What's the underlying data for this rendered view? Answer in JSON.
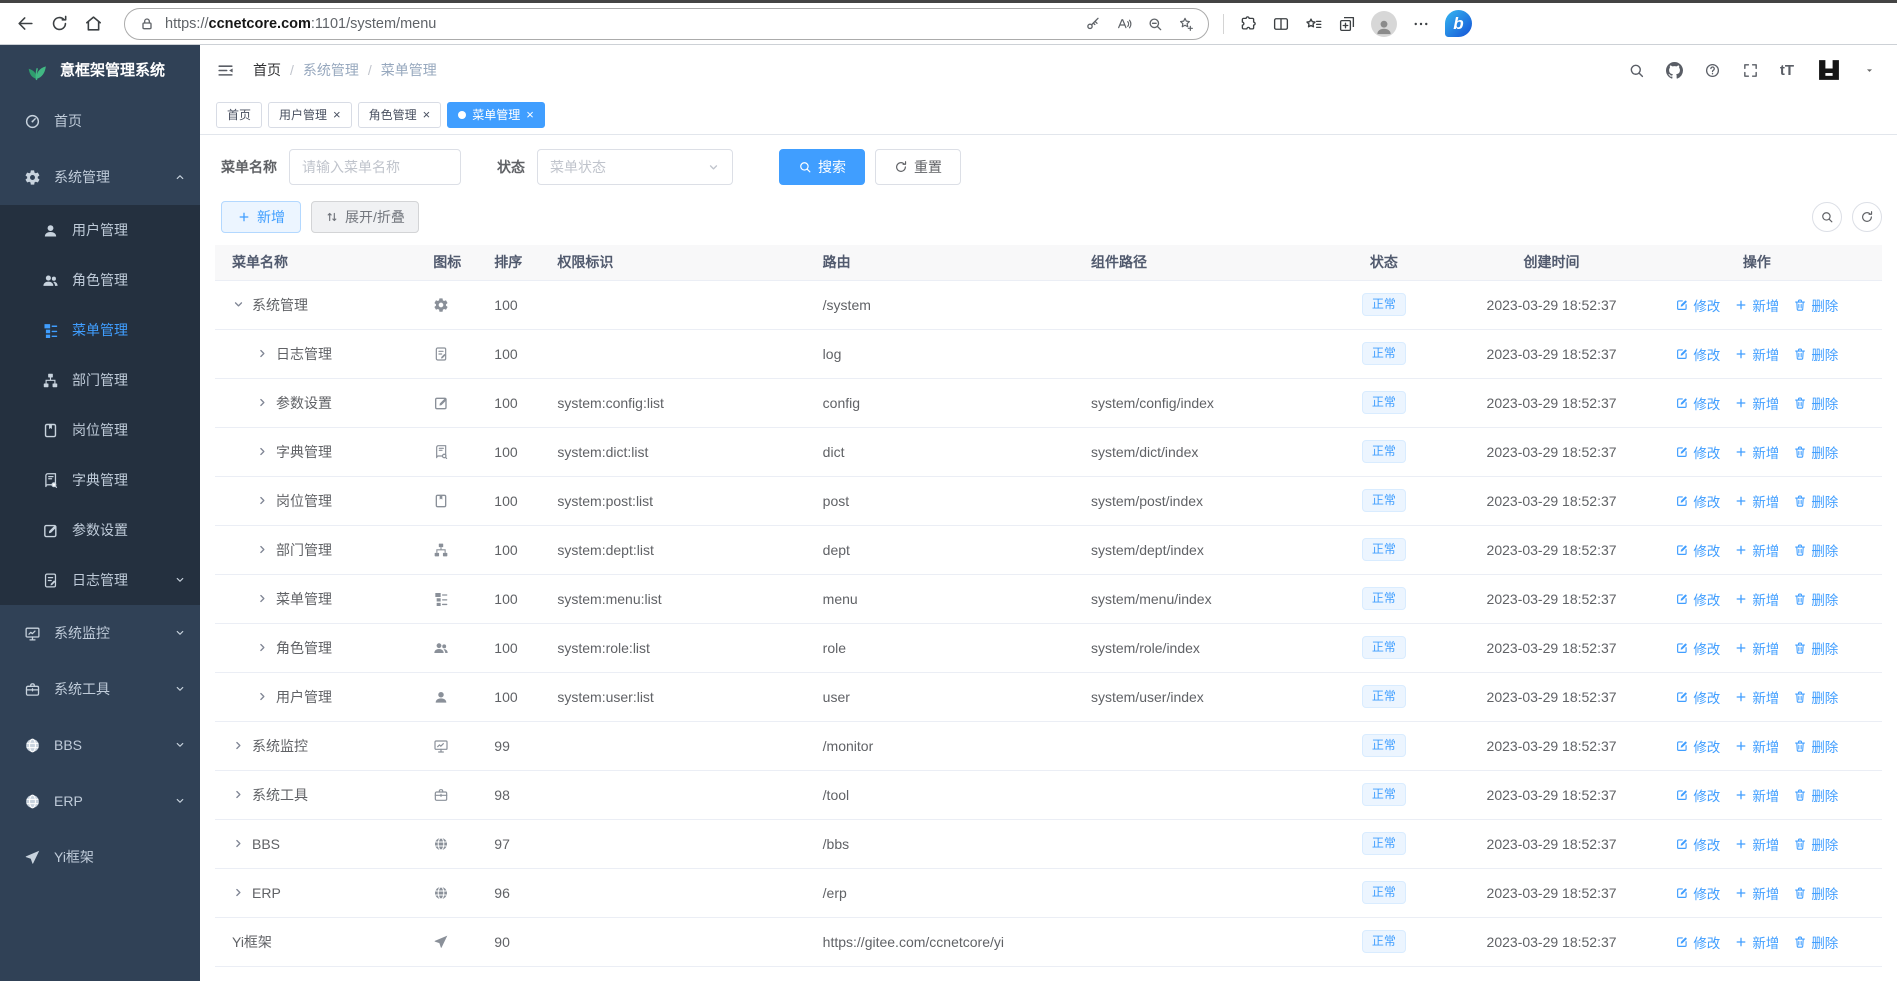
{
  "browser": {
    "url": {
      "scheme": "https://",
      "host": "ccnetcore.com",
      "rest": ":1101/system/menu"
    }
  },
  "app": {
    "logo_title": "意框架管理系统"
  },
  "breadcrumb": {
    "separator": "/",
    "items": [
      "首页",
      "系统管理",
      "菜单管理"
    ]
  },
  "tabs": [
    {
      "key": "home",
      "label": "首页",
      "closable": false,
      "active": false
    },
    {
      "key": "user",
      "label": "用户管理",
      "closable": true,
      "active": false
    },
    {
      "key": "role",
      "label": "角色管理",
      "closable": true,
      "active": false
    },
    {
      "key": "menu",
      "label": "菜单管理",
      "closable": true,
      "active": true
    }
  ],
  "header_tools": {
    "text_size_label": "tT"
  },
  "sidebar": {
    "items": [
      {
        "key": "home",
        "label": "首页",
        "icon": "dashboard"
      },
      {
        "key": "system",
        "label": "系统管理",
        "icon": "gear",
        "chevron": "up",
        "children": [
          {
            "key": "user",
            "label": "用户管理",
            "icon": "user"
          },
          {
            "key": "role",
            "label": "角色管理",
            "icon": "users"
          },
          {
            "key": "menu",
            "label": "菜单管理",
            "icon": "menu",
            "active": true
          },
          {
            "key": "dept",
            "label": "部门管理",
            "icon": "tree"
          },
          {
            "key": "post",
            "label": "岗位管理",
            "icon": "idcard"
          },
          {
            "key": "dict",
            "label": "字典管理",
            "icon": "book"
          },
          {
            "key": "config",
            "label": "参数设置",
            "icon": "edit"
          },
          {
            "key": "log",
            "label": "日志管理",
            "icon": "doc",
            "chevron": "down"
          }
        ]
      },
      {
        "key": "monitor",
        "label": "系统监控",
        "icon": "monitor",
        "chevron": "down"
      },
      {
        "key": "tool",
        "label": "系统工具",
        "icon": "briefcase",
        "chevron": "down"
      },
      {
        "key": "bbs",
        "label": "BBS",
        "icon": "globe",
        "chevron": "down"
      },
      {
        "key": "erp",
        "label": "ERP",
        "icon": "globe",
        "chevron": "down"
      },
      {
        "key": "yi",
        "label": "Yi框架",
        "icon": "plane"
      }
    ]
  },
  "filter": {
    "name_label": "菜单名称",
    "name_placeholder": "请输入菜单名称",
    "status_label": "状态",
    "status_placeholder": "菜单状态",
    "search_label": "搜索",
    "reset_label": "重置"
  },
  "toolbar": {
    "add_label": "新增",
    "toggle_label": "展开/折叠"
  },
  "table": {
    "columns": [
      "菜单名称",
      "图标",
      "排序",
      "权限标识",
      "路由",
      "组件路径",
      "状态",
      "创建时间",
      "操作"
    ],
    "row_actions": [
      "修改",
      "新增",
      "删除"
    ],
    "rows": [
      {
        "name": "系统管理",
        "arrow": "down",
        "level": 0,
        "icon": "gear",
        "order": "100",
        "perms": "",
        "path": "/system",
        "component": "",
        "status": "正常",
        "created": "2023-03-29 18:52:37"
      },
      {
        "name": "日志管理",
        "arrow": "right",
        "level": 1,
        "icon": "doc",
        "order": "100",
        "perms": "",
        "path": "log",
        "component": "",
        "status": "正常",
        "created": "2023-03-29 18:52:37"
      },
      {
        "name": "参数设置",
        "arrow": "right",
        "level": 1,
        "icon": "edit",
        "order": "100",
        "perms": "system:config:list",
        "path": "config",
        "component": "system/config/index",
        "status": "正常",
        "created": "2023-03-29 18:52:37"
      },
      {
        "name": "字典管理",
        "arrow": "right",
        "level": 1,
        "icon": "book",
        "order": "100",
        "perms": "system:dict:list",
        "path": "dict",
        "component": "system/dict/index",
        "status": "正常",
        "created": "2023-03-29 18:52:37"
      },
      {
        "name": "岗位管理",
        "arrow": "right",
        "level": 1,
        "icon": "idcard",
        "order": "100",
        "perms": "system:post:list",
        "path": "post",
        "component": "system/post/index",
        "status": "正常",
        "created": "2023-03-29 18:52:37"
      },
      {
        "name": "部门管理",
        "arrow": "right",
        "level": 1,
        "icon": "tree",
        "order": "100",
        "perms": "system:dept:list",
        "path": "dept",
        "component": "system/dept/index",
        "status": "正常",
        "created": "2023-03-29 18:52:37"
      },
      {
        "name": "菜单管理",
        "arrow": "right",
        "level": 1,
        "icon": "menu",
        "order": "100",
        "perms": "system:menu:list",
        "path": "menu",
        "component": "system/menu/index",
        "status": "正常",
        "created": "2023-03-29 18:52:37"
      },
      {
        "name": "角色管理",
        "arrow": "right",
        "level": 1,
        "icon": "users",
        "order": "100",
        "perms": "system:role:list",
        "path": "role",
        "component": "system/role/index",
        "status": "正常",
        "created": "2023-03-29 18:52:37"
      },
      {
        "name": "用户管理",
        "arrow": "right",
        "level": 1,
        "icon": "user",
        "order": "100",
        "perms": "system:user:list",
        "path": "user",
        "component": "system/user/index",
        "status": "正常",
        "created": "2023-03-29 18:52:37"
      },
      {
        "name": "系统监控",
        "arrow": "right",
        "level": 0,
        "icon": "monitor",
        "order": "99",
        "perms": "",
        "path": "/monitor",
        "component": "",
        "status": "正常",
        "created": "2023-03-29 18:52:37"
      },
      {
        "name": "系统工具",
        "arrow": "right",
        "level": 0,
        "icon": "briefcase",
        "order": "98",
        "perms": "",
        "path": "/tool",
        "component": "",
        "status": "正常",
        "created": "2023-03-29 18:52:37"
      },
      {
        "name": "BBS",
        "arrow": "right",
        "level": 0,
        "icon": "globe",
        "order": "97",
        "perms": "",
        "path": "/bbs",
        "component": "",
        "status": "正常",
        "created": "2023-03-29 18:52:37"
      },
      {
        "name": "ERP",
        "arrow": "right",
        "level": 0,
        "icon": "globe",
        "order": "96",
        "perms": "",
        "path": "/erp",
        "component": "",
        "status": "正常",
        "created": "2023-03-29 18:52:37"
      },
      {
        "name": "Yi框架",
        "arrow": null,
        "level": 0,
        "icon": "plane",
        "order": "90",
        "perms": "",
        "path": "https://gitee.com/ccnetcore/yi",
        "component": "",
        "status": "正常",
        "created": "2023-03-29 18:52:37"
      }
    ]
  },
  "colors": {
    "accent": "#409eff",
    "sidebar_bg": "#304156",
    "sidebar_submenu_bg": "#24303f",
    "badge_bg": "#ecf5ff",
    "badge_border": "#d9ecff"
  }
}
